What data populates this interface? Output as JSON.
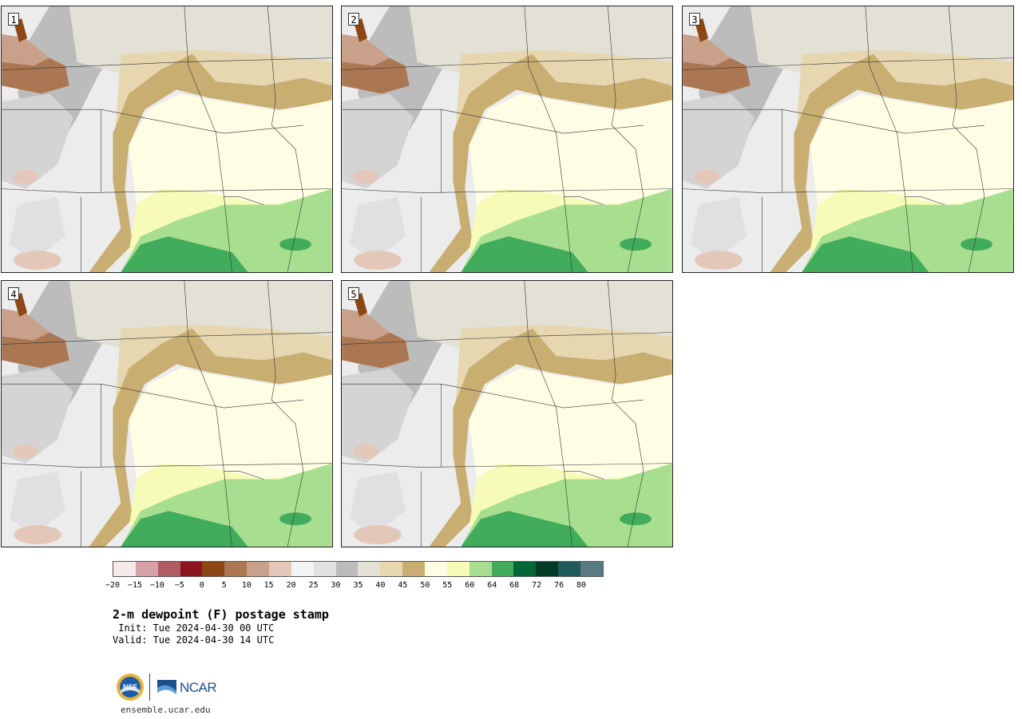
{
  "panels": [
    {
      "label": "1"
    },
    {
      "label": "2"
    },
    {
      "label": "3"
    },
    {
      "label": "4"
    },
    {
      "label": "5"
    }
  ],
  "colorbar": {
    "colors": [
      "#f5e9ea",
      "#d6a2a7",
      "#b15b62",
      "#8b141e",
      "#8c4714",
      "#ab7752",
      "#c9a089",
      "#e3c8b9",
      "#f3f3f3",
      "#e1e1e1",
      "#bcbcbc",
      "#e3e1d6",
      "#e6d7b1",
      "#c8ae71",
      "#fffee5",
      "#f6fbb7",
      "#a8de8f",
      "#41ac5c",
      "#006837",
      "#003c24",
      "#1f5a5c",
      "#577b81"
    ],
    "tick_labels": [
      "−20",
      "−15",
      "−10",
      "−5",
      "0",
      "5",
      "10",
      "15",
      "20",
      "25",
      "30",
      "35",
      "40",
      "45",
      "50",
      "55",
      "60",
      "64",
      "68",
      "72",
      "76",
      "80"
    ]
  },
  "title": "2-m dewpoint (F) postage stamp",
  "init": " Init: Tue 2024-04-30 00 UTC",
  "valid": "Valid: Tue 2024-04-30 14 UTC",
  "logos": {
    "nsf_text": "NSF",
    "ncar_text": "NCAR"
  },
  "url": "ensemble.ucar.edu"
}
